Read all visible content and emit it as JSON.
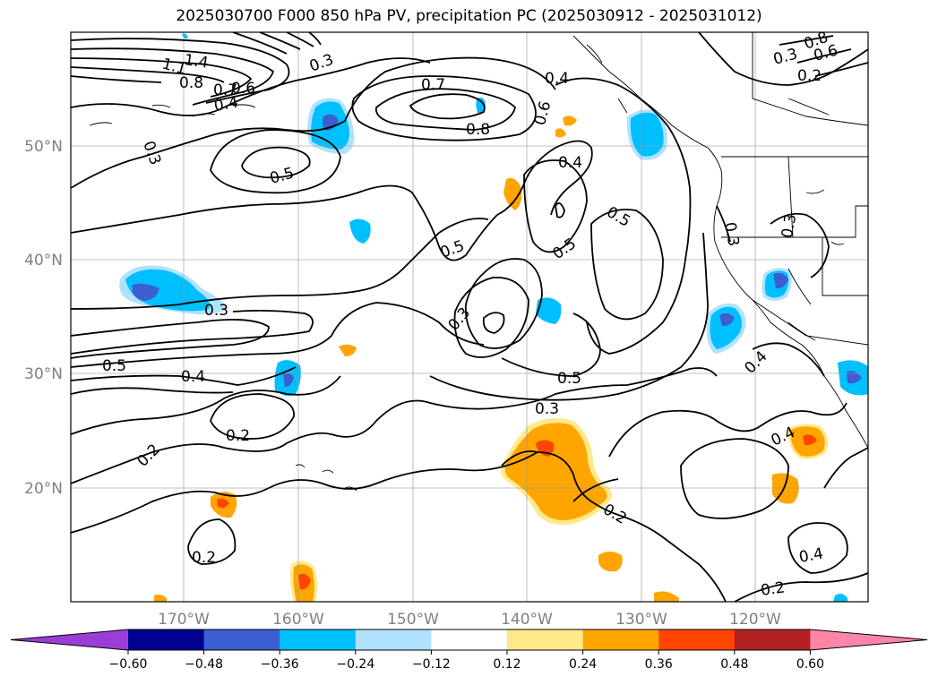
{
  "title": "2025030700 F000 850 hPa PV, precipitation PC (2025030912 - 2025031012)",
  "lat_labels": [
    "50°N",
    "40°N",
    "30°N",
    "20°N"
  ],
  "lon_labels": [
    "170°W",
    "160°W",
    "150°W",
    "140°W",
    "130°W",
    "120°W"
  ],
  "contour_labels": [
    "1.4",
    "1.1",
    "0.8",
    "0.7",
    "0.6",
    "0.4",
    "0.3",
    "0.7",
    "0.8",
    "0.4",
    "0.6",
    "0.4",
    "0.5",
    "0.5",
    "0.5",
    "0.5",
    "0.3",
    "0.3",
    "0.5",
    "0.4",
    "0.3",
    "0.2",
    "0.2",
    "0.3",
    "0.5",
    "0.2",
    "0.4",
    "0.2",
    "0.4",
    "0.2",
    "0.8",
    "0.6",
    "0.3",
    "0.2",
    "0.3",
    "0.3",
    "0.4"
  ],
  "colorbar": {
    "ticks": [
      "−0.60",
      "−0.48",
      "−0.36",
      "−0.24",
      "−0.12",
      "0.12",
      "0.24",
      "0.36",
      "0.48",
      "0.60"
    ],
    "colors": [
      "#9a3ed6",
      "#000091",
      "#3b5fd0",
      "#00bfff",
      "#b0e2ff",
      "#ffffff",
      "#ffe98a",
      "#ffa500",
      "#ff4500",
      "#b22222",
      "#ff85a8"
    ]
  },
  "colors": {
    "orange": "#ffa500",
    "red_orange": "#ff4500",
    "light_yellow": "#ffe98a",
    "deep_sky_blue": "#00bfff",
    "light_blue": "#b0e2ff",
    "royal_blue": "#3b5fd0"
  }
}
